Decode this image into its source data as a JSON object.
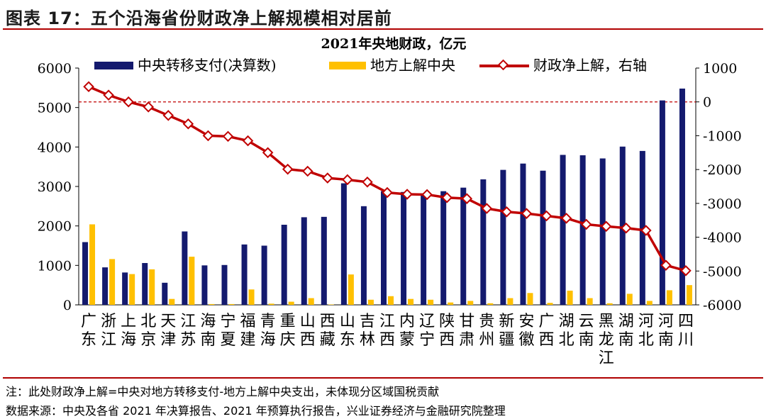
{
  "figure_title": "图表 17：五个沿海省份财政净上解规模相对居前",
  "note": "注：此处财政净上解=中央对地方转移支付-地方上解中央支出，未体现分区域国税贡献",
  "source": "数据来源：中央及各省 2021 年决算报告、2021 年预算执行报告，兴业证券经济与金融研究院整理",
  "colors": {
    "central": "#141a6e",
    "local": "#ffc000",
    "net": "#c00000",
    "title_rule": "#b00000"
  },
  "chart_data": {
    "type": "bar+line",
    "title": "2021年央地财政，亿元",
    "categories": [
      "广东",
      "浙江",
      "上海",
      "北京",
      "天津",
      "江苏",
      "海南",
      "宁夏",
      "福建",
      "青海",
      "重庆",
      "山西",
      "西藏",
      "山东",
      "吉林",
      "江西",
      "内蒙",
      "辽宁",
      "陕西",
      "甘肃",
      "贵州",
      "新疆",
      "安徽",
      "广西",
      "湖北",
      "云南",
      "黑龙江",
      "湖南",
      "河北",
      "河南",
      "四川"
    ],
    "series": [
      {
        "name": "中央转移支付(决算数)",
        "type": "bar",
        "axis": "left",
        "values": [
          1590,
          950,
          820,
          1060,
          560,
          1860,
          1000,
          1010,
          1530,
          1500,
          2030,
          2220,
          2230,
          3080,
          2500,
          2880,
          2860,
          2780,
          2880,
          2970,
          3180,
          3420,
          3580,
          3400,
          3800,
          3790,
          3710,
          4010,
          3900,
          5180,
          5480
        ]
      },
      {
        "name": "地方上解中央",
        "type": "bar",
        "axis": "left",
        "values": [
          2040,
          1160,
          780,
          900,
          150,
          1220,
          20,
          20,
          390,
          30,
          80,
          170,
          10,
          770,
          130,
          220,
          150,
          130,
          60,
          100,
          40,
          170,
          300,
          50,
          360,
          170,
          40,
          280,
          100,
          370,
          500
        ]
      },
      {
        "name": "财政净上解，右轴",
        "type": "line",
        "axis": "right",
        "values": [
          450,
          200,
          0,
          -150,
          -400,
          -650,
          -1000,
          -1020,
          -1150,
          -1500,
          -1990,
          -2050,
          -2250,
          -2300,
          -2370,
          -2680,
          -2730,
          -2740,
          -2830,
          -2860,
          -3150,
          -3250,
          -3300,
          -3370,
          -3440,
          -3620,
          -3680,
          -3730,
          -3800,
          -4830,
          -4990
        ]
      }
    ],
    "left_axis": {
      "min": 0,
      "max": 6000,
      "ticks": [
        0,
        1000,
        2000,
        3000,
        4000,
        5000,
        6000
      ]
    },
    "right_axis": {
      "min": -6000,
      "max": 1000,
      "ticks": [
        1000,
        0,
        -1000,
        -2000,
        -3000,
        -4000,
        -5000,
        -6000
      ]
    },
    "reference_line": {
      "axis": "right",
      "value": 0,
      "style": "dashed"
    },
    "legend": "top"
  }
}
